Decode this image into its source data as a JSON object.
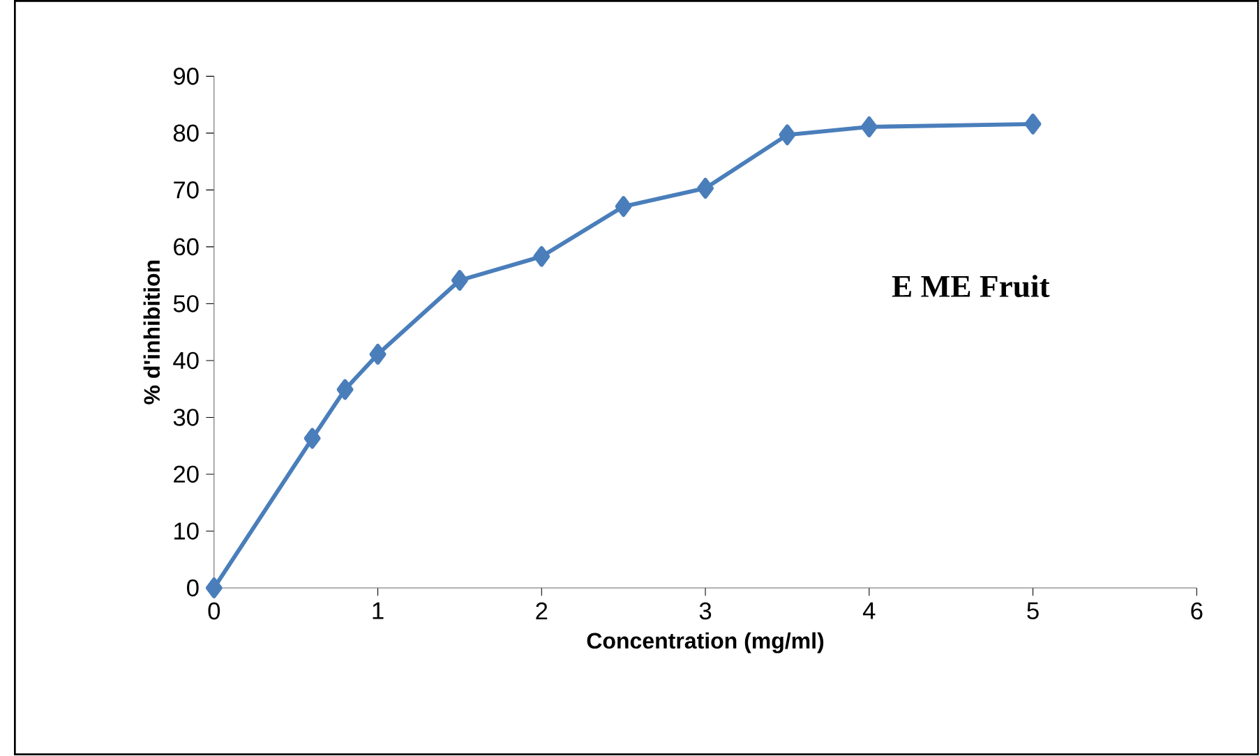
{
  "chart_data": {
    "type": "line",
    "xlabel": "Concentration (mg/ml)",
    "ylabel": "% d'inhibition",
    "annotations": [
      "E ME  Fruit"
    ],
    "x": [
      0,
      0.6,
      0.8,
      1,
      1.5,
      2,
      2.5,
      3,
      3.5,
      4,
      5
    ],
    "values": [
      0,
      26.3,
      34.9,
      41.1,
      54.1,
      58.3,
      67.1,
      70.3,
      79.7,
      81.1,
      81.6
    ],
    "color": "#4a7ebb",
    "marker": "diamond",
    "line_style": "solid",
    "grid": false,
    "xlim": [
      0,
      6
    ],
    "xticks": [
      0,
      1,
      2,
      3,
      4,
      5,
      6
    ],
    "ylim": [
      0,
      90
    ],
    "yticks": [
      0,
      10,
      20,
      30,
      40,
      50,
      60,
      70,
      80,
      90
    ]
  }
}
